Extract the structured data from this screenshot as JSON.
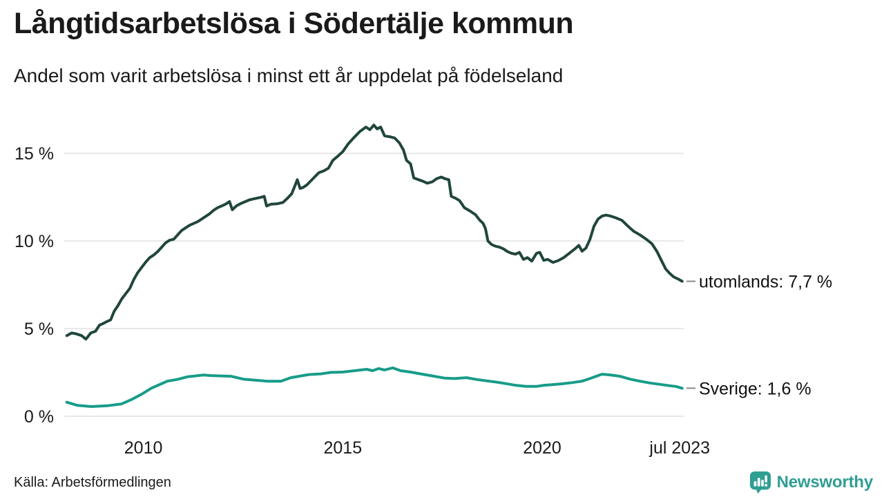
{
  "header": {
    "title": "Långtidsarbetslösa i Södertälje kommun",
    "subtitle": "Andel som varit arbetslösa i minst ett år uppdelat på födelseland"
  },
  "footer": {
    "source": "Källa: Arbetsförmedlingen",
    "brand": "Newsworthy"
  },
  "colors": {
    "utomlands": "#20463d",
    "sverige": "#179c89",
    "grid": "#e7e7e7",
    "dash": "#888888",
    "text": "#1a1a1a",
    "brand": "#2f9e93"
  },
  "chart_data": {
    "type": "line",
    "title": "Långtidsarbetslösa i Södertälje kommun",
    "subtitle": "Andel som varit arbetslösa i minst ett år uppdelat på födelseland",
    "unit": "%",
    "grid": "horizontal-only",
    "x_axis": {
      "min": 2008.05,
      "max": 2023.55,
      "ticks": [
        {
          "value": 2010,
          "label": "2010"
        },
        {
          "value": 2015,
          "label": "2015"
        },
        {
          "value": 2020,
          "label": "2020"
        },
        {
          "value": 2023.45,
          "label": "jul 2023"
        }
      ]
    },
    "y_axis": {
      "min": 0,
      "max": 17.45,
      "ticks": [
        {
          "value": 0,
          "label": "0 %"
        },
        {
          "value": 5,
          "label": "5 %"
        },
        {
          "value": 10,
          "label": "10 %"
        },
        {
          "value": 15,
          "label": "15 %"
        }
      ]
    },
    "series": [
      {
        "name": "utomlands",
        "end_label": "utomlands: 7,7 %",
        "last_value_display": "7,7 %",
        "color_key": "utomlands",
        "points": [
          [
            2008.08,
            4.6
          ],
          [
            2008.2,
            4.75
          ],
          [
            2008.32,
            4.7
          ],
          [
            2008.45,
            4.6
          ],
          [
            2008.56,
            4.4
          ],
          [
            2008.68,
            4.75
          ],
          [
            2008.8,
            4.85
          ],
          [
            2008.9,
            5.2
          ],
          [
            2009.0,
            5.3
          ],
          [
            2009.1,
            5.42
          ],
          [
            2009.18,
            5.5
          ],
          [
            2009.27,
            6.0
          ],
          [
            2009.36,
            6.3
          ],
          [
            2009.46,
            6.7
          ],
          [
            2009.56,
            7.0
          ],
          [
            2009.66,
            7.3
          ],
          [
            2009.76,
            7.8
          ],
          [
            2009.86,
            8.2
          ],
          [
            2009.96,
            8.5
          ],
          [
            2010.06,
            8.8
          ],
          [
            2010.16,
            9.05
          ],
          [
            2010.26,
            9.2
          ],
          [
            2010.36,
            9.4
          ],
          [
            2010.46,
            9.65
          ],
          [
            2010.56,
            9.9
          ],
          [
            2010.66,
            10.05
          ],
          [
            2010.76,
            10.1
          ],
          [
            2010.86,
            10.35
          ],
          [
            2010.96,
            10.6
          ],
          [
            2011.06,
            10.75
          ],
          [
            2011.16,
            10.9
          ],
          [
            2011.26,
            11.0
          ],
          [
            2011.36,
            11.1
          ],
          [
            2011.46,
            11.25
          ],
          [
            2011.56,
            11.4
          ],
          [
            2011.66,
            11.55
          ],
          [
            2011.76,
            11.75
          ],
          [
            2011.86,
            11.9
          ],
          [
            2011.96,
            12.0
          ],
          [
            2012.06,
            12.1
          ],
          [
            2012.16,
            12.25
          ],
          [
            2012.23,
            11.78
          ],
          [
            2012.33,
            12.0
          ],
          [
            2012.45,
            12.15
          ],
          [
            2012.56,
            12.25
          ],
          [
            2012.66,
            12.35
          ],
          [
            2012.76,
            12.4
          ],
          [
            2012.86,
            12.45
          ],
          [
            2012.96,
            12.5
          ],
          [
            2013.03,
            12.55
          ],
          [
            2013.09,
            12.0
          ],
          [
            2013.2,
            12.1
          ],
          [
            2013.35,
            12.12
          ],
          [
            2013.5,
            12.2
          ],
          [
            2013.62,
            12.45
          ],
          [
            2013.72,
            12.7
          ],
          [
            2013.8,
            13.15
          ],
          [
            2013.86,
            13.5
          ],
          [
            2013.93,
            13.0
          ],
          [
            2014.0,
            13.05
          ],
          [
            2014.1,
            13.2
          ],
          [
            2014.25,
            13.55
          ],
          [
            2014.4,
            13.9
          ],
          [
            2014.52,
            14.0
          ],
          [
            2014.64,
            14.15
          ],
          [
            2014.75,
            14.6
          ],
          [
            2014.88,
            14.85
          ],
          [
            2015.0,
            15.1
          ],
          [
            2015.14,
            15.55
          ],
          [
            2015.28,
            15.9
          ],
          [
            2015.43,
            16.25
          ],
          [
            2015.58,
            16.5
          ],
          [
            2015.68,
            16.35
          ],
          [
            2015.78,
            16.62
          ],
          [
            2015.86,
            16.4
          ],
          [
            2015.95,
            16.5
          ],
          [
            2016.05,
            16.0
          ],
          [
            2016.18,
            15.95
          ],
          [
            2016.3,
            15.88
          ],
          [
            2016.42,
            15.6
          ],
          [
            2016.52,
            15.2
          ],
          [
            2016.6,
            14.6
          ],
          [
            2016.7,
            14.4
          ],
          [
            2016.78,
            13.6
          ],
          [
            2016.9,
            13.5
          ],
          [
            2017.0,
            13.42
          ],
          [
            2017.12,
            13.3
          ],
          [
            2017.25,
            13.38
          ],
          [
            2017.35,
            13.55
          ],
          [
            2017.47,
            13.65
          ],
          [
            2017.57,
            13.55
          ],
          [
            2017.66,
            13.5
          ],
          [
            2017.72,
            12.55
          ],
          [
            2017.82,
            12.45
          ],
          [
            2017.93,
            12.3
          ],
          [
            2018.05,
            11.9
          ],
          [
            2018.2,
            11.7
          ],
          [
            2018.33,
            11.5
          ],
          [
            2018.43,
            11.2
          ],
          [
            2018.52,
            11.0
          ],
          [
            2018.58,
            10.7
          ],
          [
            2018.64,
            10.0
          ],
          [
            2018.73,
            9.8
          ],
          [
            2018.83,
            9.7
          ],
          [
            2018.93,
            9.65
          ],
          [
            2019.03,
            9.55
          ],
          [
            2019.13,
            9.4
          ],
          [
            2019.23,
            9.3
          ],
          [
            2019.33,
            9.25
          ],
          [
            2019.43,
            9.35
          ],
          [
            2019.53,
            8.95
          ],
          [
            2019.63,
            9.05
          ],
          [
            2019.74,
            8.85
          ],
          [
            2019.86,
            9.3
          ],
          [
            2019.94,
            9.35
          ],
          [
            2020.04,
            8.9
          ],
          [
            2020.14,
            8.95
          ],
          [
            2020.27,
            8.78
          ],
          [
            2020.4,
            8.88
          ],
          [
            2020.54,
            9.05
          ],
          [
            2020.68,
            9.3
          ],
          [
            2020.82,
            9.55
          ],
          [
            2020.92,
            9.75
          ],
          [
            2021.0,
            9.42
          ],
          [
            2021.1,
            9.6
          ],
          [
            2021.2,
            10.1
          ],
          [
            2021.3,
            10.85
          ],
          [
            2021.4,
            11.25
          ],
          [
            2021.5,
            11.42
          ],
          [
            2021.6,
            11.48
          ],
          [
            2021.72,
            11.42
          ],
          [
            2021.85,
            11.32
          ],
          [
            2022.0,
            11.18
          ],
          [
            2022.15,
            10.85
          ],
          [
            2022.3,
            10.55
          ],
          [
            2022.45,
            10.35
          ],
          [
            2022.6,
            10.12
          ],
          [
            2022.75,
            9.85
          ],
          [
            2022.88,
            9.4
          ],
          [
            2023.0,
            8.85
          ],
          [
            2023.1,
            8.4
          ],
          [
            2023.2,
            8.15
          ],
          [
            2023.3,
            7.95
          ],
          [
            2023.42,
            7.82
          ],
          [
            2023.51,
            7.7
          ]
        ]
      },
      {
        "name": "Sverige",
        "end_label": "Sverige: 1,6 %",
        "last_value_display": "1,6 %",
        "color_key": "sverige",
        "points": [
          [
            2008.08,
            0.8
          ],
          [
            2008.35,
            0.62
          ],
          [
            2008.7,
            0.55
          ],
          [
            2009.1,
            0.6
          ],
          [
            2009.45,
            0.7
          ],
          [
            2009.7,
            0.95
          ],
          [
            2009.95,
            1.25
          ],
          [
            2010.2,
            1.6
          ],
          [
            2010.45,
            1.85
          ],
          [
            2010.6,
            2.0
          ],
          [
            2010.85,
            2.1
          ],
          [
            2011.1,
            2.25
          ],
          [
            2011.3,
            2.3
          ],
          [
            2011.5,
            2.35
          ],
          [
            2011.7,
            2.32
          ],
          [
            2011.95,
            2.3
          ],
          [
            2012.2,
            2.28
          ],
          [
            2012.5,
            2.12
          ],
          [
            2012.8,
            2.06
          ],
          [
            2013.1,
            2.0
          ],
          [
            2013.45,
            2.0
          ],
          [
            2013.7,
            2.2
          ],
          [
            2013.95,
            2.3
          ],
          [
            2014.15,
            2.38
          ],
          [
            2014.45,
            2.42
          ],
          [
            2014.7,
            2.5
          ],
          [
            2015.0,
            2.52
          ],
          [
            2015.3,
            2.6
          ],
          [
            2015.6,
            2.68
          ],
          [
            2015.75,
            2.6
          ],
          [
            2015.9,
            2.72
          ],
          [
            2016.05,
            2.64
          ],
          [
            2016.25,
            2.76
          ],
          [
            2016.45,
            2.6
          ],
          [
            2016.7,
            2.52
          ],
          [
            2016.95,
            2.42
          ],
          [
            2017.25,
            2.3
          ],
          [
            2017.55,
            2.18
          ],
          [
            2017.8,
            2.15
          ],
          [
            2018.1,
            2.2
          ],
          [
            2018.35,
            2.1
          ],
          [
            2018.6,
            2.02
          ],
          [
            2018.85,
            1.95
          ],
          [
            2019.1,
            1.86
          ],
          [
            2019.35,
            1.76
          ],
          [
            2019.6,
            1.7
          ],
          [
            2019.85,
            1.7
          ],
          [
            2020.05,
            1.77
          ],
          [
            2020.25,
            1.8
          ],
          [
            2020.5,
            1.85
          ],
          [
            2020.75,
            1.92
          ],
          [
            2021.0,
            2.0
          ],
          [
            2021.2,
            2.15
          ],
          [
            2021.4,
            2.32
          ],
          [
            2021.5,
            2.4
          ],
          [
            2021.7,
            2.36
          ],
          [
            2021.95,
            2.28
          ],
          [
            2022.2,
            2.12
          ],
          [
            2022.45,
            2.0
          ],
          [
            2022.7,
            1.9
          ],
          [
            2022.95,
            1.82
          ],
          [
            2023.2,
            1.74
          ],
          [
            2023.35,
            1.7
          ],
          [
            2023.51,
            1.6
          ]
        ]
      }
    ],
    "legend_position": "end-of-line-labels"
  }
}
